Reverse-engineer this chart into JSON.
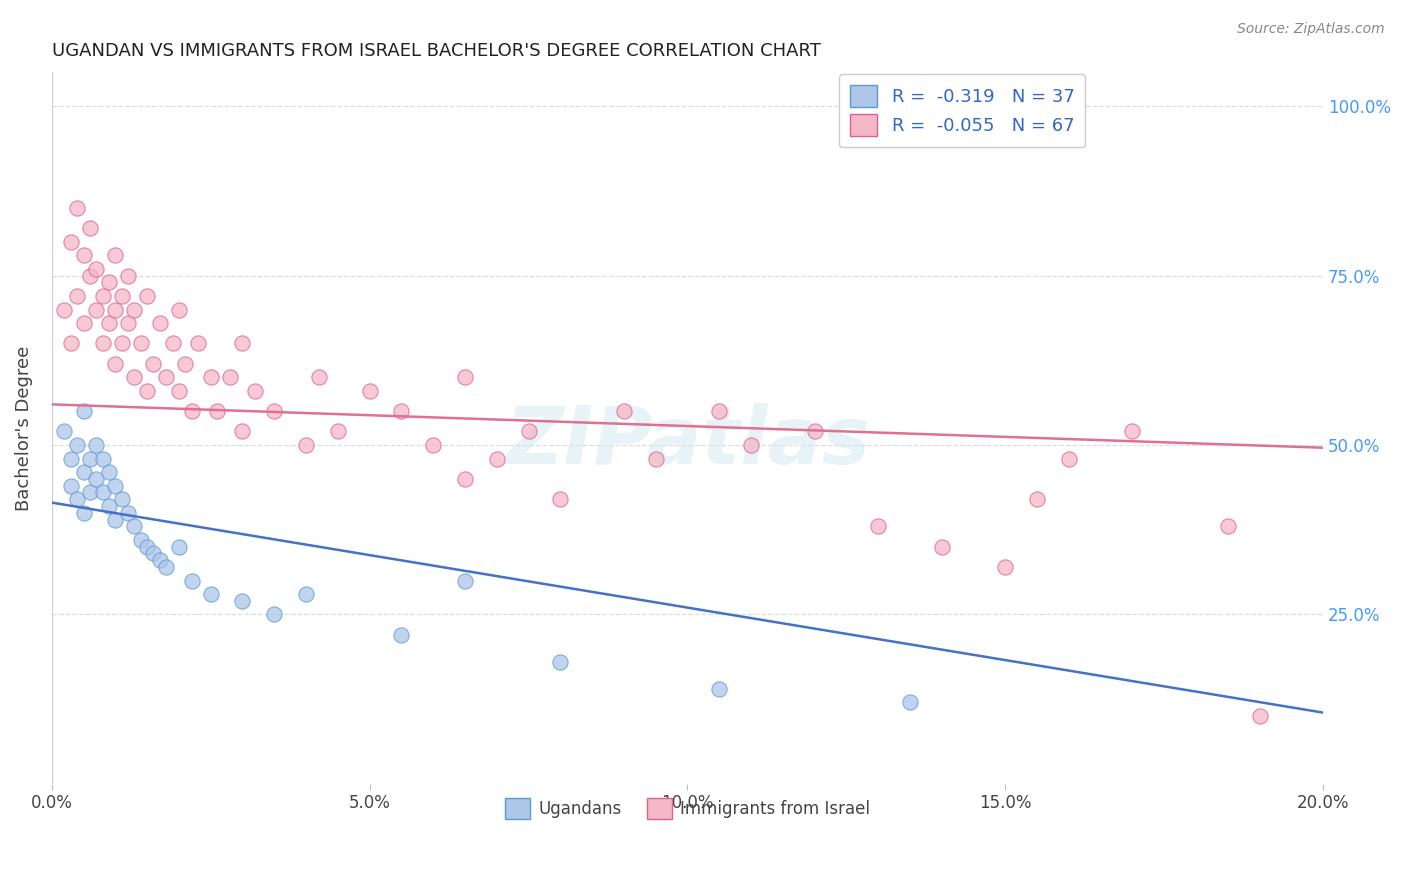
{
  "title": "UGANDAN VS IMMIGRANTS FROM ISRAEL BACHELOR'S DEGREE CORRELATION CHART",
  "source": "Source: ZipAtlas.com",
  "ylabel": "Bachelor's Degree",
  "xlim": [
    0.0,
    20.0
  ],
  "ylim": [
    0.0,
    1.05
  ],
  "xticks": [
    0.0,
    5.0,
    10.0,
    15.0,
    20.0
  ],
  "yticks": [
    0.0,
    0.25,
    0.5,
    0.75,
    1.0
  ],
  "xticklabels": [
    "0.0%",
    "5.0%",
    "10.0%",
    "15.0%",
    "20.0%"
  ],
  "right_yticklabels": [
    "",
    "25.0%",
    "50.0%",
    "75.0%",
    "100.0%"
  ],
  "legend_R": [
    "-0.319",
    "-0.055"
  ],
  "legend_N": [
    "37",
    "67"
  ],
  "blue_color": "#aec6e8",
  "pink_color": "#f4b8c8",
  "blue_edge_color": "#5b9bd5",
  "pink_edge_color": "#e06090",
  "blue_line_color": "#4472c4",
  "pink_line_color": "#e07090",
  "watermark": "ZIPatlas",
  "ugandan_x": [
    0.2,
    0.3,
    0.3,
    0.4,
    0.4,
    0.5,
    0.5,
    0.5,
    0.6,
    0.6,
    0.7,
    0.7,
    0.8,
    0.8,
    0.9,
    0.9,
    1.0,
    1.0,
    1.1,
    1.2,
    1.3,
    1.4,
    1.5,
    1.6,
    1.7,
    1.8,
    2.0,
    2.2,
    2.5,
    3.0,
    3.5,
    4.0,
    5.5,
    6.5,
    8.0,
    10.5,
    13.5
  ],
  "ugandan_y": [
    0.52,
    0.48,
    0.44,
    0.5,
    0.42,
    0.55,
    0.46,
    0.4,
    0.48,
    0.43,
    0.5,
    0.45,
    0.48,
    0.43,
    0.46,
    0.41,
    0.44,
    0.39,
    0.42,
    0.4,
    0.38,
    0.36,
    0.35,
    0.34,
    0.33,
    0.32,
    0.35,
    0.3,
    0.28,
    0.27,
    0.25,
    0.28,
    0.22,
    0.3,
    0.18,
    0.14,
    0.12
  ],
  "israel_x": [
    0.2,
    0.3,
    0.3,
    0.4,
    0.4,
    0.5,
    0.5,
    0.6,
    0.6,
    0.7,
    0.7,
    0.8,
    0.8,
    0.9,
    0.9,
    1.0,
    1.0,
    1.0,
    1.1,
    1.1,
    1.2,
    1.2,
    1.3,
    1.3,
    1.4,
    1.5,
    1.5,
    1.6,
    1.7,
    1.8,
    1.9,
    2.0,
    2.0,
    2.1,
    2.2,
    2.3,
    2.5,
    2.6,
    2.8,
    3.0,
    3.0,
    3.2,
    3.5,
    4.0,
    4.2,
    4.5,
    5.0,
    5.5,
    6.0,
    6.5,
    6.5,
    7.0,
    7.5,
    8.0,
    9.0,
    9.5,
    10.5,
    11.0,
    12.0,
    13.0,
    14.0,
    15.0,
    15.5,
    16.0,
    17.0,
    18.5,
    19.0
  ],
  "israel_y": [
    0.7,
    0.65,
    0.8,
    0.72,
    0.85,
    0.68,
    0.78,
    0.75,
    0.82,
    0.7,
    0.76,
    0.72,
    0.65,
    0.68,
    0.74,
    0.62,
    0.7,
    0.78,
    0.65,
    0.72,
    0.68,
    0.75,
    0.6,
    0.7,
    0.65,
    0.58,
    0.72,
    0.62,
    0.68,
    0.6,
    0.65,
    0.58,
    0.7,
    0.62,
    0.55,
    0.65,
    0.6,
    0.55,
    0.6,
    0.52,
    0.65,
    0.58,
    0.55,
    0.5,
    0.6,
    0.52,
    0.58,
    0.55,
    0.5,
    0.45,
    0.6,
    0.48,
    0.52,
    0.42,
    0.55,
    0.48,
    0.55,
    0.5,
    0.52,
    0.38,
    0.35,
    0.32,
    0.42,
    0.48,
    0.52,
    0.38,
    0.1
  ],
  "blue_intercept": 0.415,
  "blue_slope": -0.0155,
  "pink_intercept": 0.56,
  "pink_slope": -0.0032
}
